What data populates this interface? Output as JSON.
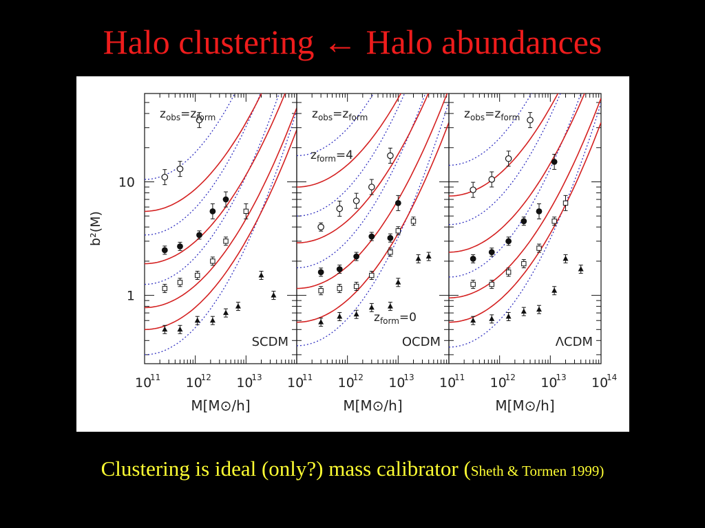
{
  "slide": {
    "title": "Halo clustering ← Halo abundances",
    "caption_main": "Clustering is ideal (only?) mass calibrator (",
    "caption_ref": "Sheth & Tormen 1999)"
  },
  "colors": {
    "background": "#000000",
    "title": "#ee1c1c",
    "caption": "#ffff33",
    "theory_curve": "#d42020",
    "alt_curve": "#3030c0",
    "figure_background": "#ffffff"
  },
  "chart_data": [
    {
      "type": "scatter",
      "title": "",
      "xlabel": "M[M⊙/h]",
      "ylabel": "b²(M)",
      "xscale": "log",
      "yscale": "log",
      "xlim": [
        100000000000.0,
        100000000000000.0
      ],
      "ylim": [
        0.25,
        60
      ],
      "x_tick_labels": [
        "10",
        "10",
        "10"
      ],
      "x_tick_exponents": [
        "11",
        "12",
        "13"
      ],
      "y_tick_labels": [
        "10",
        "1"
      ],
      "y_tick_values": [
        10,
        1
      ],
      "legend": "none",
      "annotations": [
        {
          "text": "z",
          "sub": "obs",
          "text2": "=z",
          "sub2": "form",
          "role": "title_note"
        },
        {
          "text": "SCDM",
          "role": "model"
        }
      ],
      "curves": {
        "solid_b2_at_1e11": [
          5.5,
          1.9,
          0.78,
          0.5
        ],
        "dotted_b2_at_1e11": [
          10.5,
          3.4,
          1.25,
          0.3
        ]
      },
      "series": [
        {
          "marker": "open-circle",
          "points": [
            [
              250000000000.0,
              11
            ],
            [
              500000000000.0,
              13
            ],
            [
              1200000000000.0,
              35
            ]
          ]
        },
        {
          "marker": "filled-circle",
          "points": [
            [
              250000000000.0,
              2.5
            ],
            [
              500000000000.0,
              2.7
            ],
            [
              1200000000000.0,
              3.4
            ],
            [
              2200000000000.0,
              5.5
            ],
            [
              4000000000000.0,
              7
            ]
          ]
        },
        {
          "marker": "open-square",
          "points": [
            [
              250000000000.0,
              1.15
            ],
            [
              500000000000.0,
              1.3
            ],
            [
              1100000000000.0,
              1.5
            ],
            [
              2200000000000.0,
              2
            ],
            [
              4000000000000.0,
              3
            ],
            [
              10000000000000.0,
              5.5
            ]
          ]
        },
        {
          "marker": "filled-triangle",
          "points": [
            [
              250000000000.0,
              0.5
            ],
            [
              500000000000.0,
              0.5
            ],
            [
              1100000000000.0,
              0.6
            ],
            [
              2200000000000.0,
              0.6
            ],
            [
              4000000000000.0,
              0.7
            ],
            [
              7000000000000.0,
              0.8
            ],
            [
              20000000000000.0,
              1.5
            ],
            [
              35000000000000.0,
              1
            ]
          ]
        }
      ]
    },
    {
      "type": "scatter",
      "title": "",
      "xlabel": "M[M⊙/h]",
      "xscale": "log",
      "yscale": "log",
      "xlim": [
        100000000000.0,
        100000000000000.0
      ],
      "ylim": [
        0.25,
        60
      ],
      "x_tick_labels": [
        "10",
        "10",
        "10"
      ],
      "x_tick_exponents": [
        "11",
        "12",
        "13"
      ],
      "legend": "none",
      "annotations": [
        {
          "text": "z",
          "sub": "obs",
          "text2": "=z",
          "sub2": "form",
          "role": "title_note"
        },
        {
          "text": "z",
          "sub": "form",
          "text2": "=4",
          "role": "label_top"
        },
        {
          "text": "z",
          "sub": "form",
          "text2": "=0",
          "role": "label_bottom"
        },
        {
          "text": "OCDM",
          "role": "model"
        }
      ],
      "curves": {
        "solid_b2_at_1e11": [
          9,
          2.9,
          1.15,
          0.58
        ],
        "dotted_b2_at_1e11": [
          17,
          5,
          1.75,
          0.36
        ]
      },
      "series": [
        {
          "marker": "open-circle",
          "points": [
            [
              300000000000.0,
              4
            ],
            [
              700000000000.0,
              5.8
            ],
            [
              1500000000000.0,
              6.8
            ],
            [
              3000000000000.0,
              9
            ],
            [
              7000000000000.0,
              17
            ]
          ]
        },
        {
          "marker": "filled-circle",
          "points": [
            [
              300000000000.0,
              1.6
            ],
            [
              700000000000.0,
              1.7
            ],
            [
              1500000000000.0,
              2.2
            ],
            [
              3000000000000.0,
              3.3
            ],
            [
              7000000000000.0,
              3.2
            ],
            [
              10000000000000.0,
              6.5
            ]
          ]
        },
        {
          "marker": "open-square",
          "points": [
            [
              300000000000.0,
              1.1
            ],
            [
              700000000000.0,
              1.15
            ],
            [
              1500000000000.0,
              1.2
            ],
            [
              3000000000000.0,
              1.5
            ],
            [
              7000000000000.0,
              2.4
            ],
            [
              10000000000000.0,
              3.7
            ],
            [
              20000000000000.0,
              4.5
            ]
          ]
        },
        {
          "marker": "filled-triangle",
          "points": [
            [
              300000000000.0,
              0.58
            ],
            [
              700000000000.0,
              0.65
            ],
            [
              1500000000000.0,
              0.68
            ],
            [
              3000000000000.0,
              0.78
            ],
            [
              7000000000000.0,
              0.8
            ],
            [
              10000000000000.0,
              1.3
            ],
            [
              25000000000000.0,
              2.1
            ],
            [
              40000000000000.0,
              2.2
            ]
          ]
        }
      ]
    },
    {
      "type": "scatter",
      "title": "",
      "xlabel": "M[M⊙/h]",
      "xscale": "log",
      "yscale": "log",
      "xlim": [
        100000000000.0,
        100000000000000.0
      ],
      "ylim": [
        0.25,
        60
      ],
      "x_tick_labels": [
        "10",
        "10",
        "10",
        "10"
      ],
      "x_tick_exponents": [
        "11",
        "12",
        "13",
        "14"
      ],
      "legend": "none",
      "annotations": [
        {
          "text": "z",
          "sub": "obs",
          "text2": "=z",
          "sub2": "form",
          "role": "title_note"
        },
        {
          "text": "ΛCDM",
          "role": "model"
        }
      ],
      "curves": {
        "solid_b2_at_1e11": [
          7.5,
          2.4,
          0.95,
          0.58
        ],
        "dotted_b2_at_1e11": [
          14,
          4.2,
          1.45,
          0.35
        ]
      },
      "series": [
        {
          "marker": "open-circle",
          "points": [
            [
              300000000000.0,
              8.5
            ],
            [
              700000000000.0,
              10.5
            ],
            [
              1500000000000.0,
              16
            ],
            [
              4000000000000.0,
              35
            ]
          ]
        },
        {
          "marker": "filled-circle",
          "points": [
            [
              300000000000.0,
              2.1
            ],
            [
              700000000000.0,
              2.4
            ],
            [
              1500000000000.0,
              3
            ],
            [
              3000000000000.0,
              4.5
            ],
            [
              6000000000000.0,
              5.5
            ],
            [
              12000000000000.0,
              15
            ]
          ]
        },
        {
          "marker": "open-square",
          "points": [
            [
              300000000000.0,
              1.25
            ],
            [
              700000000000.0,
              1.25
            ],
            [
              1500000000000.0,
              1.6
            ],
            [
              3000000000000.0,
              1.9
            ],
            [
              6000000000000.0,
              2.6
            ],
            [
              12000000000000.0,
              4.5
            ],
            [
              20000000000000.0,
              6.5
            ]
          ]
        },
        {
          "marker": "filled-triangle",
          "points": [
            [
              300000000000.0,
              0.6
            ],
            [
              700000000000.0,
              0.62
            ],
            [
              1500000000000.0,
              0.65
            ],
            [
              3000000000000.0,
              0.72
            ],
            [
              6000000000000.0,
              0.75
            ],
            [
              12000000000000.0,
              1.1
            ],
            [
              20000000000000.0,
              2.1
            ],
            [
              40000000000000.0,
              1.7
            ]
          ]
        }
      ]
    }
  ]
}
